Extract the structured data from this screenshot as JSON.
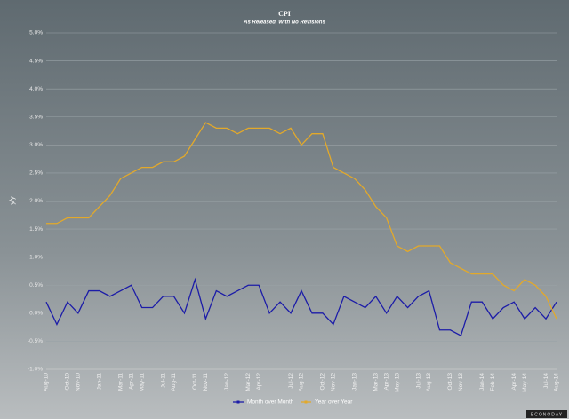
{
  "chart_data": {
    "type": "line",
    "title": "CPI",
    "subtitle": "As Released, With No Revisions",
    "y_label": "y/y",
    "source": "ECONODAY",
    "categories": [
      "Aug-10",
      null,
      "Oct-10",
      "Nov-10",
      null,
      "Jan-11",
      null,
      "Mar-11",
      "Apr-11",
      "May-11",
      null,
      "Jul-11",
      "Aug-11",
      null,
      "Oct-11",
      "Nov-11",
      null,
      "Jan-12",
      null,
      "Mar-12",
      "Apr-12",
      null,
      null,
      "Jul-12",
      "Aug-12",
      null,
      "Oct-12",
      "Nov-12",
      null,
      "Jan-13",
      null,
      "Mar-13",
      "Apr-13",
      "May-13",
      null,
      "Jul-13",
      "Aug-13",
      null,
      "Oct-13",
      "Nov-13",
      null,
      "Jan-14",
      "Feb-14",
      null,
      "Apr-14",
      "May-14",
      null,
      "Jul-14",
      "Aug-14"
    ],
    "series": [
      {
        "name": "Month over Month",
        "color": "#1c1ca8",
        "values": [
          0.2,
          -0.2,
          0.2,
          0.0,
          0.4,
          0.4,
          0.3,
          0.4,
          0.5,
          0.1,
          0.1,
          0.3,
          0.3,
          0.0,
          0.6,
          -0.1,
          0.4,
          0.3,
          0.4,
          0.5,
          0.5,
          0.0,
          0.2,
          0.0,
          0.4,
          0.0,
          0.0,
          -0.2,
          0.3,
          0.2,
          0.1,
          0.3,
          0.0,
          0.3,
          0.1,
          0.3,
          0.4,
          -0.3,
          -0.3,
          -0.4,
          0.2,
          0.2,
          -0.1,
          0.1,
          0.2,
          -0.1,
          0.1,
          -0.1,
          0.2
        ]
      },
      {
        "name": "Year over Year",
        "color": "#e3a92a",
        "values": [
          1.6,
          1.6,
          1.7,
          1.7,
          1.7,
          1.9,
          2.1,
          2.4,
          2.5,
          2.6,
          2.6,
          2.7,
          2.7,
          2.8,
          3.1,
          3.4,
          3.3,
          3.3,
          3.2,
          3.3,
          3.3,
          3.3,
          3.2,
          3.3,
          3.0,
          3.2,
          3.2,
          2.6,
          2.5,
          2.4,
          2.2,
          1.9,
          1.7,
          1.2,
          1.1,
          1.2,
          1.2,
          1.2,
          0.9,
          0.8,
          0.7,
          0.7,
          0.7,
          0.5,
          0.4,
          0.6,
          0.5,
          0.3,
          -0.1
        ]
      }
    ],
    "ylim": [
      -1.0,
      5.0
    ],
    "yticks": [
      {
        "value": -1.0,
        "label": "-1.0%"
      },
      {
        "value": -0.5,
        "label": "-0.5%"
      },
      {
        "value": 0.0,
        "label": "0.0%"
      },
      {
        "value": 0.5,
        "label": "0.5%"
      },
      {
        "value": 1.0,
        "label": "1.0%"
      },
      {
        "value": 1.5,
        "label": "1.5%"
      },
      {
        "value": 2.0,
        "label": "2.0%"
      },
      {
        "value": 2.5,
        "label": "2.5%"
      },
      {
        "value": 3.0,
        "label": "3.0%"
      },
      {
        "value": 3.5,
        "label": "3.5%"
      },
      {
        "value": 4.0,
        "label": "4.0%"
      },
      {
        "value": 4.5,
        "label": "4.5%"
      },
      {
        "value": 5.0,
        "label": "5.0%"
      }
    ],
    "grid": true
  }
}
